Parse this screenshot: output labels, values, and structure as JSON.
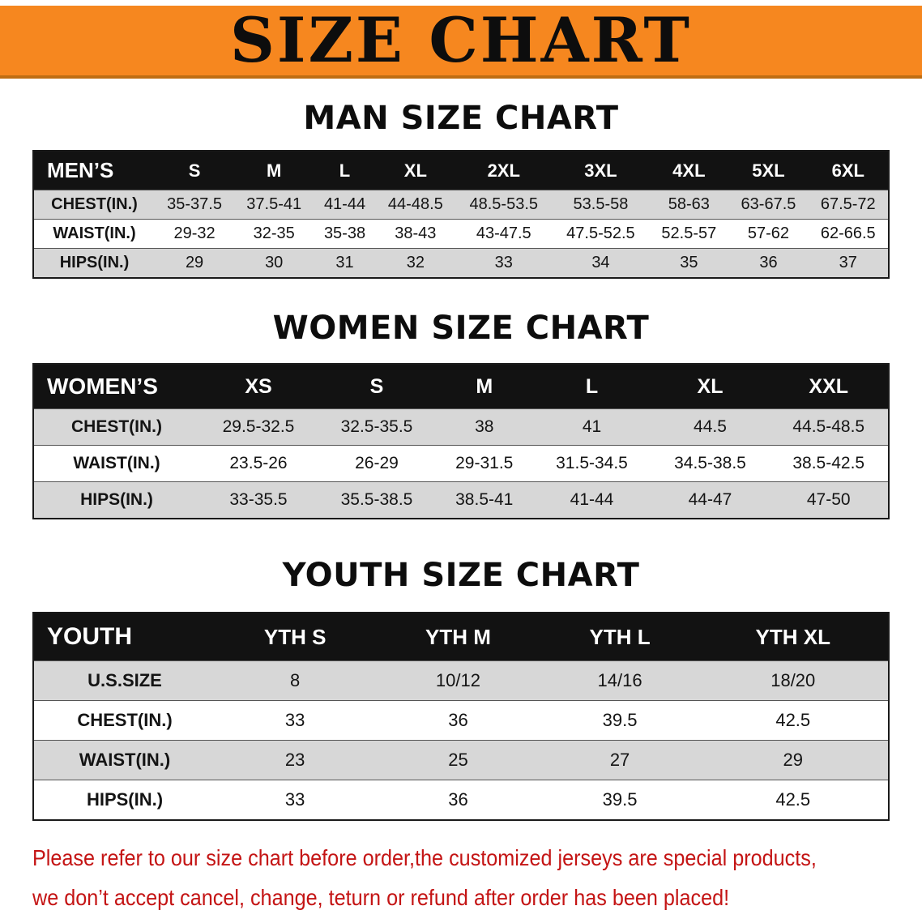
{
  "banner": {
    "title": "SIZE CHART"
  },
  "men": {
    "heading": "MAN SIZE CHART",
    "table": {
      "header": [
        "MEN’S",
        "S",
        "M",
        "L",
        "XL",
        "2XL",
        "3XL",
        "4XL",
        "5XL",
        "6XL"
      ],
      "rows": [
        [
          "CHEST(IN.)",
          "35-37.5",
          "37.5-41",
          "41-44",
          "44-48.5",
          "48.5-53.5",
          "53.5-58",
          "58-63",
          "63-67.5",
          "67.5-72"
        ],
        [
          "WAIST(IN.)",
          "29-32",
          "32-35",
          "35-38",
          "38-43",
          "43-47.5",
          "47.5-52.5",
          "52.5-57",
          "57-62",
          "62-66.5"
        ],
        [
          "HIPS(IN.)",
          "29",
          "30",
          "31",
          "32",
          "33",
          "34",
          "35",
          "36",
          "37"
        ]
      ]
    }
  },
  "women": {
    "heading": "WOMEN SIZE CHART",
    "table": {
      "header": [
        "WOMEN’S",
        "XS",
        "S",
        "M",
        "L",
        "XL",
        "XXL"
      ],
      "rows": [
        [
          "CHEST(IN.)",
          "29.5-32.5",
          "32.5-35.5",
          "38",
          "41",
          "44.5",
          "44.5-48.5"
        ],
        [
          "WAIST(IN.)",
          "23.5-26",
          "26-29",
          "29-31.5",
          "31.5-34.5",
          "34.5-38.5",
          "38.5-42.5"
        ],
        [
          "HIPS(IN.)",
          "33-35.5",
          "35.5-38.5",
          "38.5-41",
          "41-44",
          "44-47",
          "47-50"
        ]
      ]
    }
  },
  "youth": {
    "heading": "YOUTH SIZE CHART",
    "table": {
      "header": [
        "YOUTH",
        "YTH S",
        "YTH M",
        "YTH L",
        "YTH XL"
      ],
      "rows": [
        [
          "U.S.SIZE",
          "8",
          "10/12",
          "14/16",
          "18/20"
        ],
        [
          "CHEST(IN.)",
          "33",
          "36",
          "39.5",
          "42.5"
        ],
        [
          "WAIST(IN.)",
          "23",
          "25",
          "27",
          "29"
        ],
        [
          "HIPS(IN.)",
          "33",
          "36",
          "39.5",
          "42.5"
        ]
      ]
    }
  },
  "note": {
    "line1": "Please refer to our size chart before order,the customized jerseys are special products,",
    "line2": "we don’t accept cancel, change, teturn or refund after order has been placed!"
  },
  "colors": {
    "banner_bg": "#f6871f",
    "banner_edge": "#bf6d12",
    "header_bg": "#121212",
    "header_text": "#ffffff",
    "row_alt_bg": "#d7d7d7",
    "note_red": "#c41414"
  }
}
